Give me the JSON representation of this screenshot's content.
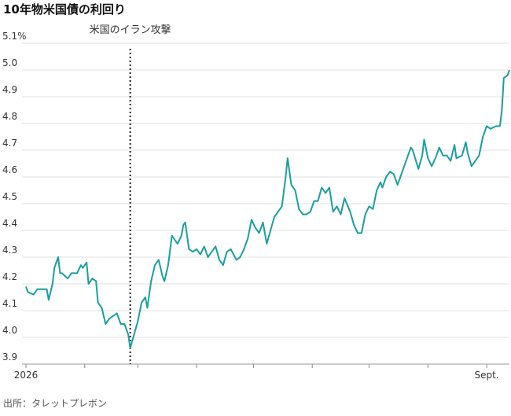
{
  "chart_data": {
    "type": "line",
    "title": "10年物米国債の利回り",
    "source": "出所：タレットプレボン",
    "annotation": {
      "text": "米国のイラン攻撃",
      "x": 55
    },
    "x": [
      0,
      1,
      4,
      6,
      9,
      11,
      12,
      14,
      15,
      17,
      18,
      19,
      22,
      24,
      27,
      29,
      30,
      32,
      33,
      35,
      37,
      38,
      40,
      42,
      44,
      46,
      48,
      50,
      52,
      54,
      55,
      57,
      59,
      61,
      63,
      64,
      66,
      68,
      70,
      72,
      73,
      75,
      77,
      79,
      80,
      82,
      83,
      84,
      86,
      88,
      90,
      92,
      94,
      96,
      98,
      100,
      102,
      104,
      106,
      108,
      111,
      113,
      115,
      117,
      119,
      121,
      123,
      125,
      127,
      129,
      131,
      133,
      135,
      137,
      138,
      140,
      142,
      144,
      146,
      148,
      150,
      152,
      154,
      156,
      158,
      160,
      162,
      164,
      166,
      168,
      171,
      173,
      175,
      177,
      179,
      181,
      183,
      185,
      187,
      188,
      190,
      192,
      194,
      196,
      198,
      201,
      203,
      204,
      207,
      209,
      210,
      212,
      214,
      216,
      218,
      220,
      222,
      224,
      226,
      227,
      230,
      232,
      233,
      235,
      237,
      239,
      241,
      243,
      245,
      248,
      250,
      251,
      252,
      254,
      255
    ],
    "series": [
      {
        "name": "10年物米国債",
        "color": "#1c9e9e",
        "values": [
          4.19,
          4.17,
          4.16,
          4.18,
          4.18,
          4.18,
          4.14,
          4.2,
          4.26,
          4.3,
          4.24,
          4.24,
          4.22,
          4.24,
          4.24,
          4.27,
          4.26,
          4.28,
          4.2,
          4.22,
          4.21,
          4.13,
          4.11,
          4.05,
          4.07,
          4.08,
          4.09,
          4.05,
          4.05,
          4.01,
          3.96,
          4.01,
          4.06,
          4.13,
          4.15,
          4.11,
          4.21,
          4.27,
          4.29,
          4.23,
          4.21,
          4.27,
          4.38,
          4.36,
          4.35,
          4.38,
          4.42,
          4.43,
          4.33,
          4.32,
          4.33,
          4.31,
          4.34,
          4.3,
          4.32,
          4.34,
          4.29,
          4.27,
          4.32,
          4.33,
          4.29,
          4.3,
          4.33,
          4.37,
          4.44,
          4.41,
          4.39,
          4.43,
          4.35,
          4.4,
          4.45,
          4.47,
          4.49,
          4.6,
          4.67,
          4.57,
          4.55,
          4.48,
          4.46,
          4.46,
          4.47,
          4.51,
          4.51,
          4.56,
          4.54,
          4.56,
          4.47,
          4.49,
          4.46,
          4.52,
          4.47,
          4.42,
          4.39,
          4.39,
          4.46,
          4.49,
          4.48,
          4.55,
          4.58,
          4.56,
          4.6,
          4.62,
          4.61,
          4.57,
          4.61,
          4.67,
          4.71,
          4.7,
          4.63,
          4.68,
          4.74,
          4.67,
          4.64,
          4.67,
          4.71,
          4.68,
          4.68,
          4.66,
          4.72,
          4.67,
          4.68,
          4.73,
          4.69,
          4.64,
          4.66,
          4.68,
          4.75,
          4.79,
          4.78,
          4.79,
          4.79,
          4.85,
          4.97,
          4.98,
          5.0
        ]
      }
    ],
    "xlim": [
      0,
      255
    ],
    "xticks": [
      {
        "value": 0,
        "label": "2026"
      },
      {
        "value": 243,
        "label": "Sept."
      }
    ],
    "minor_xticks": [
      31,
      59,
      90,
      120,
      151,
      181,
      212
    ],
    "ylim": [
      3.9,
      5.1
    ],
    "yticks": [
      {
        "value": 3.9,
        "label": "3.9"
      },
      {
        "value": 4,
        "label": "4.0"
      },
      4.1,
      4.2,
      4.3,
      4.4,
      4.5,
      4.6,
      4.7,
      4.8,
      4.9,
      {
        "value": 5,
        "label": "5.0"
      },
      {
        "value": 5.1,
        "label": "5.1%"
      }
    ],
    "grid": true
  }
}
